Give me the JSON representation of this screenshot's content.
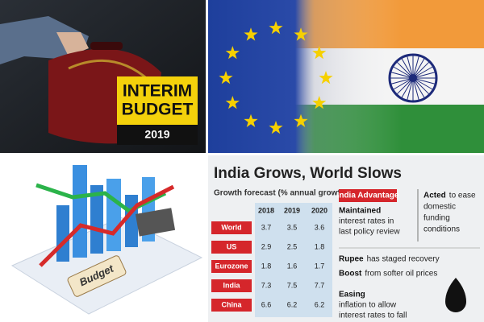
{
  "top_left": {
    "banner_line1": "INTERIM",
    "banner_line2": "BUDGET",
    "banner_year": "2019"
  },
  "bottom_left": {
    "tag": "Budget"
  },
  "infographic": {
    "title": "India Grows, World Slows",
    "subtitle": "Growth forecast (% annual growth)",
    "table": {
      "header": [
        2018,
        2019,
        2020
      ],
      "rows": [
        [
          "World",
          3.7,
          3.5,
          3.6
        ],
        [
          "US",
          2.9,
          2.5,
          1.8
        ],
        [
          "Eurozone",
          1.8,
          1.6,
          1.7
        ],
        [
          "India",
          7.3,
          7.5,
          7.7
        ],
        [
          "China",
          6.6,
          6.2,
          6.2
        ]
      ]
    },
    "advantage_title": "India Advantage",
    "points": [
      {
        "bold": "Maintained",
        "lines": [
          "interest rates in",
          "last policy review"
        ]
      },
      {
        "bold": "Acted",
        "lines": [
          "to ease",
          "domestic",
          "funding",
          "conditions"
        ]
      },
      {
        "bold": "Rupee",
        "lines": [
          "has staged recovery"
        ]
      },
      {
        "bold": "Boost",
        "lines": [
          "from softer oil prices"
        ]
      },
      {
        "bold": "Easing",
        "lines": [
          "inflation to allow",
          "interest rates to fall"
        ]
      }
    ]
  }
}
